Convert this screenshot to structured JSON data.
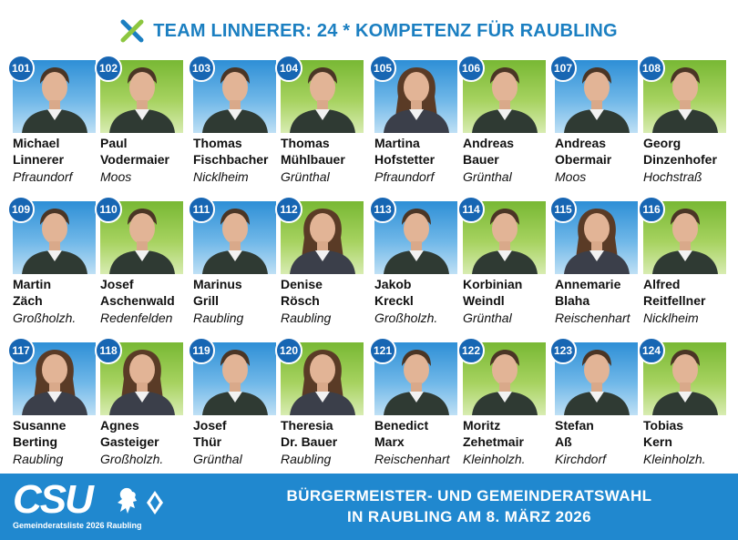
{
  "header": {
    "title": "TEAM LINNERER: 24 * KOMPETENZ FÜR RAUBLING",
    "logo_icon": "x-check-icon"
  },
  "candidates": [
    {
      "number": "101",
      "first": "Michael",
      "last": "Linnerer",
      "place": "Pfraundorf",
      "bg": "blue"
    },
    {
      "number": "102",
      "first": "Paul",
      "last": "Vodermaier",
      "place": "Moos",
      "bg": "green"
    },
    {
      "number": "103",
      "first": "Thomas",
      "last": "Fischbacher",
      "place": "Nicklheim",
      "bg": "blue"
    },
    {
      "number": "104",
      "first": "Thomas",
      "last": "Mühlbauer",
      "place": "Grünthal",
      "bg": "green"
    },
    {
      "number": "105",
      "first": "Martina",
      "last": "Hofstetter",
      "place": "Pfraundorf",
      "bg": "blue"
    },
    {
      "number": "106",
      "first": "Andreas",
      "last": "Bauer",
      "place": "Grünthal",
      "bg": "green"
    },
    {
      "number": "107",
      "first": "Andreas",
      "last": "Obermair",
      "place": "Moos",
      "bg": "blue"
    },
    {
      "number": "108",
      "first": "Georg",
      "last": "Dinzenhofer",
      "place": "Hochstraß",
      "bg": "green"
    },
    {
      "number": "109",
      "first": "Martin",
      "last": "Zäch",
      "place": "Großholzh.",
      "bg": "blue"
    },
    {
      "number": "110",
      "first": "Josef",
      "last": "Aschenwald",
      "place": "Redenfelden",
      "bg": "green"
    },
    {
      "number": "111",
      "first": "Marinus",
      "last": "Grill",
      "place": "Raubling",
      "bg": "blue"
    },
    {
      "number": "112",
      "first": "Denise",
      "last": "Rösch",
      "place": "Raubling",
      "bg": "green"
    },
    {
      "number": "113",
      "first": "Jakob",
      "last": "Kreckl",
      "place": "Großholzh.",
      "bg": "blue"
    },
    {
      "number": "114",
      "first": "Korbinian",
      "last": "Weindl",
      "place": "Grünthal",
      "bg": "green"
    },
    {
      "number": "115",
      "first": "Annemarie",
      "last": "Blaha",
      "place": "Reischenhart",
      "bg": "blue"
    },
    {
      "number": "116",
      "first": "Alfred",
      "last": "Reitfellner",
      "place": "Nicklheim",
      "bg": "green"
    },
    {
      "number": "117",
      "first": "Susanne",
      "last": "Berting",
      "place": "Raubling",
      "bg": "blue"
    },
    {
      "number": "118",
      "first": "Agnes",
      "last": "Gasteiger",
      "place": "Großholzh.",
      "bg": "green"
    },
    {
      "number": "119",
      "first": "Josef",
      "last": "Thür",
      "place": "Grünthal",
      "bg": "blue"
    },
    {
      "number": "120",
      "first": "Theresia",
      "last": "Dr. Bauer",
      "place": "Raubling",
      "bg": "green"
    },
    {
      "number": "121",
      "first": "Benedict",
      "last": "Marx",
      "place": "Reischenhart",
      "bg": "blue"
    },
    {
      "number": "122",
      "first": "Moritz",
      "last": "Zehetmair",
      "place": "Kleinholzh.",
      "bg": "green"
    },
    {
      "number": "123",
      "first": "Stefan",
      "last": "Aß",
      "place": "Kirchdorf",
      "bg": "blue"
    },
    {
      "number": "124",
      "first": "Tobias",
      "last": "Kern",
      "place": "Kleinholzh.",
      "bg": "green"
    }
  ],
  "footer": {
    "party_logo": "CSU",
    "party_sub": "Gemeinderatsliste 2026 Raubling",
    "line1": "BÜRGERMEISTER- UND GEMEINDERATSWAHL",
    "line2": "IN RAUBLING AM 8. MÄRZ 2026"
  },
  "colors": {
    "accent_blue": "#1b7fc1",
    "footer_blue": "#2088cf",
    "badge_blue": "#1766b3",
    "green": "#8cc63f"
  }
}
